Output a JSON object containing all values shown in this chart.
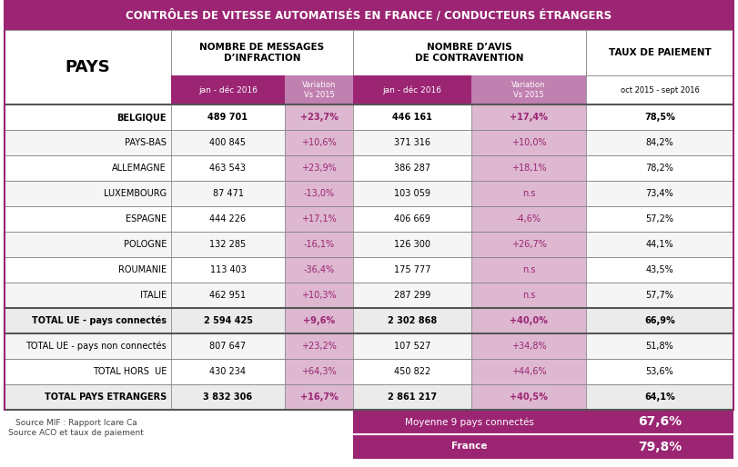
{
  "title": "CONTRÔLES DE VITESSE AUTOMATISÉS EN FRANCE / CONDUCTEURS ÉTRANGERS",
  "title_bg": "#9B2573",
  "title_color": "#FFFFFF",
  "header1": "NOMBRE DE MESSAGES\nD’INFRACTION",
  "header2": "NOMBRE D’AVIS\nDE CONTRAVENTION",
  "header3": "TAUX DE PAIEMENT",
  "subheader_bg": "#9B2573",
  "subheader_variation_bg": "#C080B0",
  "col_pays": "PAYS",
  "col_sub1": "jan - déc 2016",
  "col_sub2": "Variation\nVs 2015",
  "col_sub3": "jan - déc 2016",
  "col_sub4": "Variation\nVs 2015",
  "col_sub5": "oct 2015 - sept 2016",
  "rows": [
    {
      "pays": "BELGIQUE",
      "n1": "489 701",
      "v1": "+23,7%",
      "n2": "446 161",
      "v2": "+17,4%",
      "taux": "78,5%",
      "bold": true,
      "bg": "#FFFFFF",
      "thick_top": true
    },
    {
      "pays": "PAYS-BAS",
      "n1": "400 845",
      "v1": "+10,6%",
      "n2": "371 316",
      "v2": "+10,0%",
      "taux": "84,2%",
      "bold": false,
      "bg": "#F5F5F5",
      "thick_top": false
    },
    {
      "pays": "ALLEMAGNE",
      "n1": "463 543",
      "v1": "+23,9%",
      "n2": "386 287",
      "v2": "+18,1%",
      "taux": "78,2%",
      "bold": false,
      "bg": "#FFFFFF",
      "thick_top": false
    },
    {
      "pays": "LUXEMBOURG",
      "n1": "87 471",
      "v1": "-13,0%",
      "n2": "103 059",
      "v2": "n.s",
      "taux": "73,4%",
      "bold": false,
      "bg": "#F5F5F5",
      "thick_top": false
    },
    {
      "pays": "ESPAGNE",
      "n1": "444 226",
      "v1": "+17,1%",
      "n2": "406 669",
      "v2": "-4,6%",
      "taux": "57,2%",
      "bold": false,
      "bg": "#FFFFFF",
      "thick_top": false
    },
    {
      "pays": "POLOGNE",
      "n1": "132 285",
      "v1": "-16,1%",
      "n2": "126 300",
      "v2": "+26,7%",
      "taux": "44,1%",
      "bold": false,
      "bg": "#F5F5F5",
      "thick_top": false
    },
    {
      "pays": "ROUMANIE",
      "n1": "113 403",
      "v1": "-36,4%",
      "n2": "175 777",
      "v2": "n.s",
      "taux": "43,5%",
      "bold": false,
      "bg": "#FFFFFF",
      "thick_top": false
    },
    {
      "pays": "ITALIE",
      "n1": "462 951",
      "v1": "+10,3%",
      "n2": "287 299",
      "v2": "n.s",
      "taux": "57,7%",
      "bold": false,
      "bg": "#F5F5F5",
      "thick_top": false
    },
    {
      "pays": "TOTAL UE - pays connectés",
      "n1": "2 594 425",
      "v1": "+9,6%",
      "n2": "2 302 868",
      "v2": "+40,0%",
      "taux": "66,9%",
      "bold": true,
      "bg": "#EBEBEB",
      "thick_top": true
    },
    {
      "pays": "TOTAL UE - pays non connectés",
      "n1": "807 647",
      "v1": "+23,2%",
      "n2": "107 527",
      "v2": "+34,8%",
      "taux": "51,8%",
      "bold": false,
      "bg": "#F5F5F5",
      "thick_top": true
    },
    {
      "pays": "TOTAL HORS  UE",
      "n1": "430 234",
      "v1": "+64,3%",
      "n2": "450 822",
      "v2": "+44,6%",
      "taux": "53,6%",
      "bold": false,
      "bg": "#FFFFFF",
      "thick_top": false
    },
    {
      "pays": "TOTAL PAYS ETRANGERS",
      "n1": "3 832 306",
      "v1": "+16,7%",
      "n2": "2 861 217",
      "v2": "+40,5%",
      "taux": "64,1%",
      "bold": true,
      "bg": "#EBEBEB",
      "thick_top": false
    }
  ],
  "footer_rows": [
    {
      "label": "Moyenne 9 pays connectés",
      "value": "67,6%",
      "bold_label": false,
      "bold_value": true
    },
    {
      "label": "France",
      "value": "79,8%",
      "bold_label": true,
      "bold_value": true
    }
  ],
  "footer_bg": "#9B2573",
  "source_text": "Source MIF : Rapport Icare Ca\nSource ACO et taux de paiement",
  "variation_cell_bg": "#DDB8D0",
  "border_color": "#888888",
  "thick_border_color": "#555555"
}
